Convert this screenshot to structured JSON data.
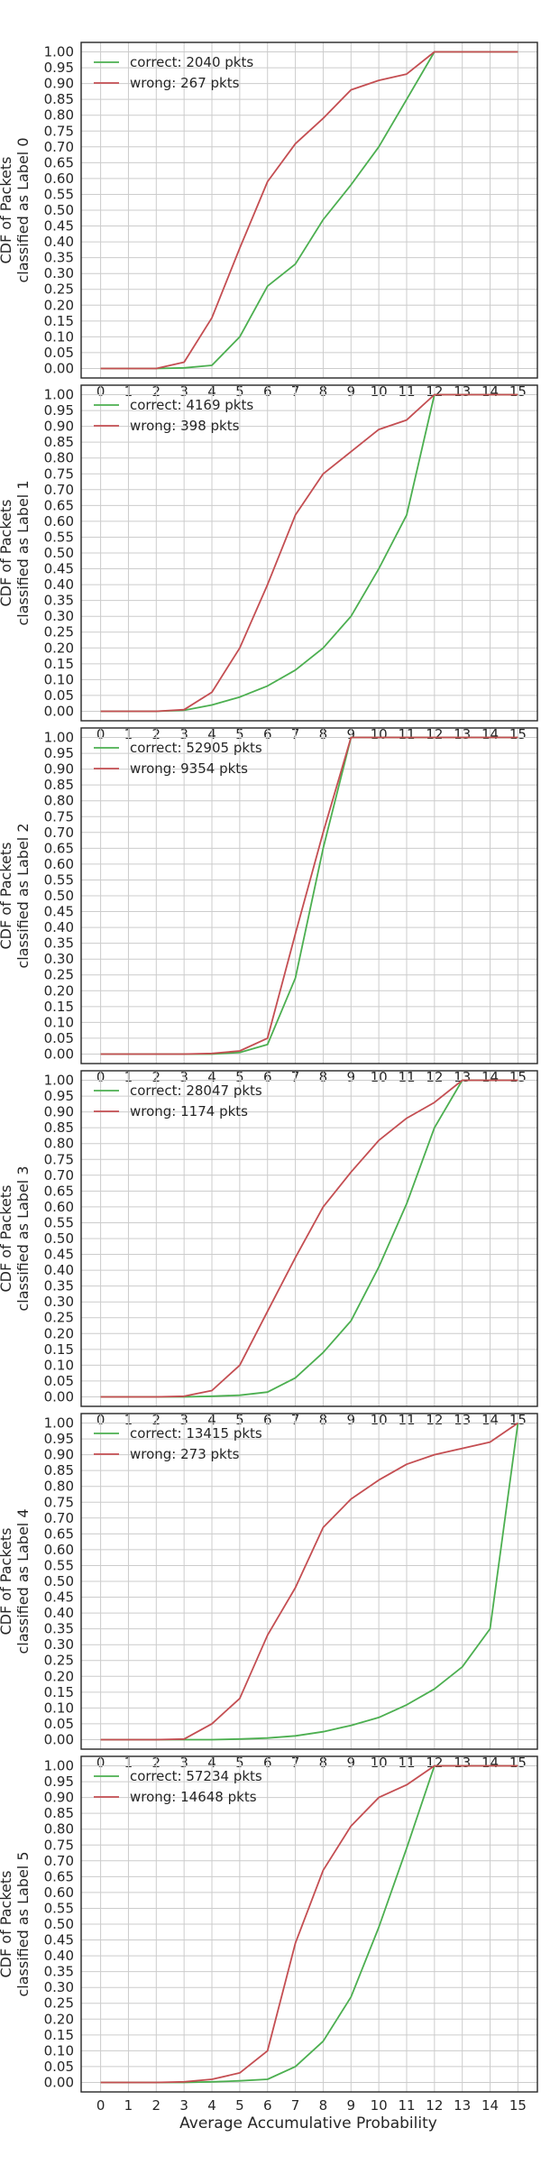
{
  "chart_data": {
    "type": "line",
    "xlabel": "Average Accumulative Probability",
    "ylabel_prefix": "CDF of Packets",
    "x": [
      0,
      1,
      2,
      3,
      4,
      5,
      6,
      7,
      8,
      9,
      10,
      11,
      12,
      13,
      14,
      15
    ],
    "xlim": [
      -0.7,
      15.7
    ],
    "ylim": [
      -0.03,
      1.03
    ],
    "yticks": [
      "0.00",
      "0.05",
      "0.10",
      "0.15",
      "0.20",
      "0.25",
      "0.30",
      "0.35",
      "0.40",
      "0.45",
      "0.50",
      "0.55",
      "0.60",
      "0.65",
      "0.70",
      "0.75",
      "0.80",
      "0.85",
      "0.90",
      "0.95",
      "1.00"
    ],
    "grid": true,
    "legend_position": "top-left",
    "colors": {
      "correct": "#4caf50",
      "wrong": "#c44e52"
    },
    "panels": [
      {
        "ylabel": "classified as Label 0",
        "series": [
          {
            "name": "correct: 2040 pkts",
            "key": "correct",
            "values": [
              0,
              0,
              0,
              0.002,
              0.01,
              0.1,
              0.26,
              0.33,
              0.47,
              0.58,
              0.7,
              0.85,
              1,
              1,
              1,
              1
            ]
          },
          {
            "name": "wrong: 267 pkts",
            "key": "wrong",
            "values": [
              0,
              0,
              0,
              0.02,
              0.16,
              0.38,
              0.59,
              0.71,
              0.79,
              0.88,
              0.91,
              0.93,
              1,
              1,
              1,
              1
            ]
          }
        ]
      },
      {
        "ylabel": "classified as Label 1",
        "series": [
          {
            "name": "correct: 4169 pkts",
            "key": "correct",
            "values": [
              0,
              0,
              0,
              0.003,
              0.02,
              0.045,
              0.08,
              0.13,
              0.2,
              0.3,
              0.45,
              0.62,
              1,
              1,
              1,
              1
            ]
          },
          {
            "name": "wrong: 398 pkts",
            "key": "wrong",
            "values": [
              0,
              0,
              0,
              0.005,
              0.06,
              0.2,
              0.4,
              0.62,
              0.75,
              0.82,
              0.89,
              0.92,
              1,
              1,
              1,
              1
            ]
          }
        ]
      },
      {
        "ylabel": "classified as Label 2",
        "series": [
          {
            "name": "correct: 52905 pkts",
            "key": "correct",
            "values": [
              0,
              0,
              0,
              0,
              0,
              0.005,
              0.03,
              0.24,
              0.65,
              1,
              1,
              1,
              1,
              1,
              1,
              1
            ]
          },
          {
            "name": "wrong: 9354 pkts",
            "key": "wrong",
            "values": [
              0,
              0,
              0,
              0,
              0.002,
              0.01,
              0.05,
              0.38,
              0.7,
              1,
              1,
              1,
              1,
              1,
              1,
              1
            ]
          }
        ]
      },
      {
        "ylabel": "classified as Label 3",
        "series": [
          {
            "name": "correct: 28047 pkts",
            "key": "correct",
            "values": [
              0,
              0,
              0,
              0,
              0.002,
              0.005,
              0.015,
              0.06,
              0.14,
              0.24,
              0.41,
              0.61,
              0.85,
              1,
              1,
              1
            ]
          },
          {
            "name": "wrong: 1174 pkts",
            "key": "wrong",
            "values": [
              0,
              0,
              0,
              0.002,
              0.02,
              0.1,
              0.27,
              0.44,
              0.6,
              0.71,
              0.81,
              0.88,
              0.93,
              1,
              1,
              1
            ]
          }
        ]
      },
      {
        "ylabel": "classified as Label 4",
        "series": [
          {
            "name": "correct: 13415 pkts",
            "key": "correct",
            "values": [
              0,
              0,
              0,
              0,
              0,
              0.002,
              0.005,
              0.012,
              0.025,
              0.045,
              0.07,
              0.11,
              0.16,
              0.23,
              0.35,
              1
            ]
          },
          {
            "name": "wrong: 273 pkts",
            "key": "wrong",
            "values": [
              0,
              0,
              0,
              0.002,
              0.05,
              0.13,
              0.33,
              0.48,
              0.67,
              0.76,
              0.82,
              0.87,
              0.9,
              0.92,
              0.94,
              1
            ]
          }
        ]
      },
      {
        "ylabel": "classified as Label 5",
        "series": [
          {
            "name": "correct: 57234 pkts",
            "key": "correct",
            "values": [
              0,
              0,
              0,
              0,
              0.002,
              0.005,
              0.01,
              0.05,
              0.13,
              0.27,
              0.49,
              0.74,
              1,
              1,
              1,
              1
            ]
          },
          {
            "name": "wrong: 14648 pkts",
            "key": "wrong",
            "values": [
              0,
              0,
              0,
              0.002,
              0.01,
              0.03,
              0.1,
              0.44,
              0.67,
              0.81,
              0.9,
              0.94,
              1,
              1,
              1,
              1
            ]
          }
        ]
      }
    ]
  }
}
